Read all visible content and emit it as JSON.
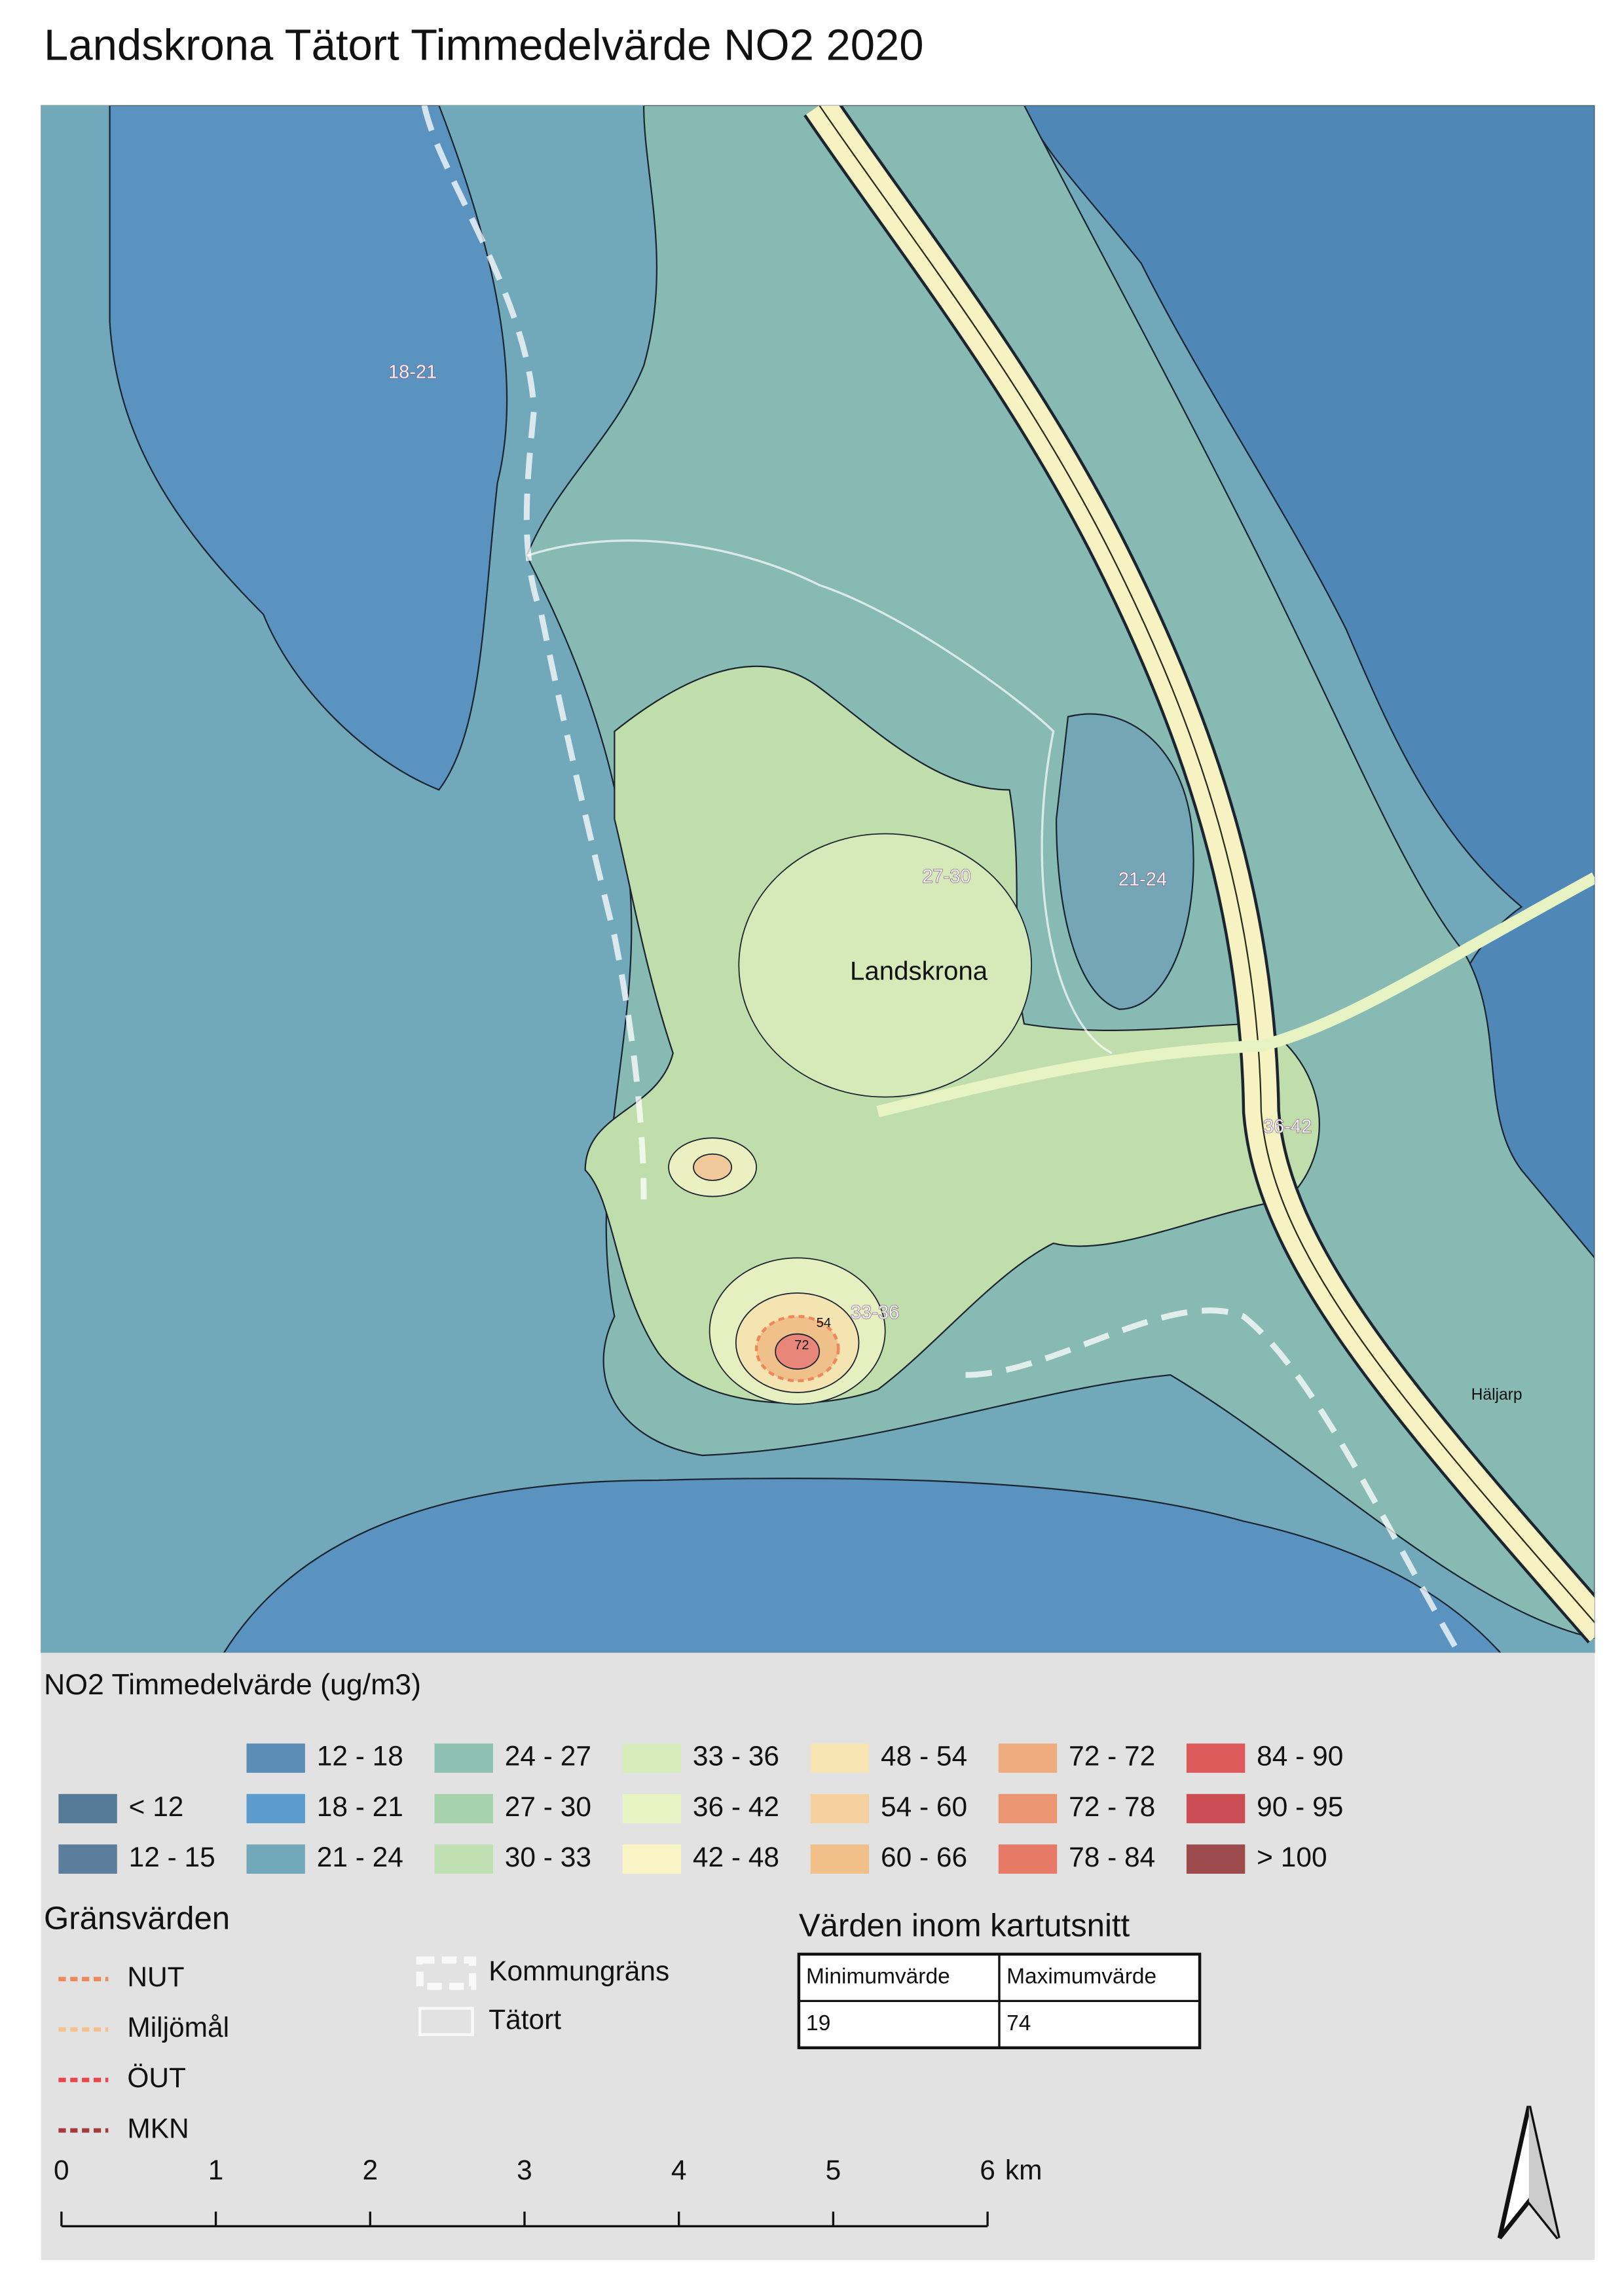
{
  "title": "Landskrona Tätort Timmedelvärde NO2 2020",
  "map": {
    "labels": [
      {
        "text": "18-21",
        "kind": "zone"
      },
      {
        "text": "27-30",
        "kind": "zone"
      },
      {
        "text": "21-24",
        "kind": "zone"
      },
      {
        "text": "Landskrona",
        "kind": "place"
      },
      {
        "text": "36-42",
        "kind": "zone"
      },
      {
        "text": "33-36",
        "kind": "zone"
      },
      {
        "text": "54",
        "kind": "contour"
      },
      {
        "text": "72",
        "kind": "contour"
      },
      {
        "text": "Häljarp",
        "kind": "place-small"
      }
    ]
  },
  "legend": {
    "title": "NO2 Timmedelvärde (ug/m3)",
    "items": [
      {
        "label": "< 12",
        "color": "#557a98"
      },
      {
        "label": "12 - 15",
        "color": "#5a7e9c"
      },
      {
        "label": "12 - 18",
        "color": "#5b8db7"
      },
      {
        "label": "18 - 21",
        "color": "#5b9bcd"
      },
      {
        "label": "21 - 24",
        "color": "#72a9ba"
      },
      {
        "label": "24 - 27",
        "color": "#8ec1b2"
      },
      {
        "label": "27 - 30",
        "color": "#a7d3ac"
      },
      {
        "label": "30 - 33",
        "color": "#bfe0b2"
      },
      {
        "label": "33 - 36",
        "color": "#d6ecbb"
      },
      {
        "label": "36 - 42",
        "color": "#e8f3c3"
      },
      {
        "label": "42 - 48",
        "color": "#f8f4c4"
      },
      {
        "label": "48 - 54",
        "color": "#f6e4b2"
      },
      {
        "label": "54 - 60",
        "color": "#f4d19f"
      },
      {
        "label": "60 - 66",
        "color": "#f1bf88"
      },
      {
        "label": "72 - 72",
        "color": "#efac7e"
      },
      {
        "label": "72 - 78",
        "color": "#ec9572"
      },
      {
        "label": "78 - 84",
        "color": "#e67a66"
      },
      {
        "label": "84 - 90",
        "color": "#dd5a5b"
      },
      {
        "label": "90 - 95",
        "color": "#ca4e54"
      },
      {
        "label": "> 100",
        "color": "#9c4a4c"
      }
    ]
  },
  "limits": {
    "title": "Gränsvärden",
    "items": [
      {
        "label": "NUT",
        "color": "#f0875a"
      },
      {
        "label": "Miljömål",
        "color": "#f5c08c"
      },
      {
        "label": "ÖUT",
        "color": "#e8464a"
      },
      {
        "label": "MKN",
        "color": "#a33a3c"
      }
    ]
  },
  "boundaries": {
    "items": [
      {
        "label": "Kommungräns",
        "style": "dashed"
      },
      {
        "label": "Tätort",
        "style": "solid"
      }
    ]
  },
  "table": {
    "title": "Värden inom kartutsnitt",
    "header": [
      "Minimumvärde",
      "Maximumvärde"
    ],
    "rows": [
      [
        "19",
        "74"
      ]
    ]
  },
  "scale_bar": {
    "ticks": [
      0,
      1,
      2,
      3,
      4,
      5,
      6
    ],
    "unit": "km"
  }
}
